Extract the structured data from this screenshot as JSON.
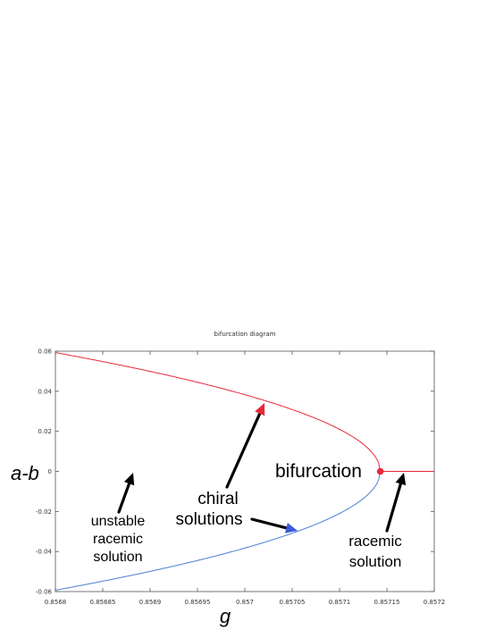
{
  "chart_data": {
    "type": "line",
    "title": "bifurcation diagram",
    "xlabel": "g",
    "ylabel": "a-b",
    "xlim": [
      0.8568,
      0.8572
    ],
    "ylim": [
      -0.06,
      0.06
    ],
    "x_ticks": [
      "0.8568",
      "0.85685",
      "0.8569",
      "0.85695",
      "0.857",
      "0.85705",
      "0.8571",
      "0.85715",
      "0.8572"
    ],
    "y_ticks": [
      "0.06",
      "0.04",
      "0.02",
      "0",
      "-0.02",
      "-0.04",
      "-0.06"
    ],
    "grid": false,
    "bifurcation_point": {
      "x": 0.857143,
      "y": 0
    },
    "series": [
      {
        "color": "#e8283c",
        "x": [
          0.8568,
          0.85685,
          0.8569,
          0.85695,
          0.857,
          0.85705,
          0.8571,
          0.85713,
          0.857143
        ],
        "y": [
          0.0593,
          0.0532,
          0.0467,
          0.0394,
          0.0309,
          0.0206,
          0.0092,
          0.0036,
          0
        ]
      },
      {
        "color": "#4a7fd6",
        "x": [
          0.8568,
          0.85685,
          0.8569,
          0.85695,
          0.857,
          0.85705,
          0.8571,
          0.85713,
          0.857143
        ],
        "y": [
          -0.0593,
          -0.0532,
          -0.0467,
          -0.0394,
          -0.0309,
          -0.0206,
          -0.0092,
          -0.0036,
          0
        ]
      },
      {
        "color": "#e8283c",
        "x": [
          0.857143,
          0.8572
        ],
        "y": [
          0,
          0
        ]
      }
    ],
    "annotations": {
      "unstable": [
        "unstable",
        "racemic",
        "solution"
      ],
      "chiral": [
        "chiral",
        "solutions"
      ],
      "bifurcation": "bifurcation",
      "racemic": [
        "racemic",
        "solution"
      ]
    },
    "arrow_colors": {
      "chiral_up": "#e8283c",
      "chiral_down": "#3b5bd9",
      "black": "#000000"
    }
  }
}
